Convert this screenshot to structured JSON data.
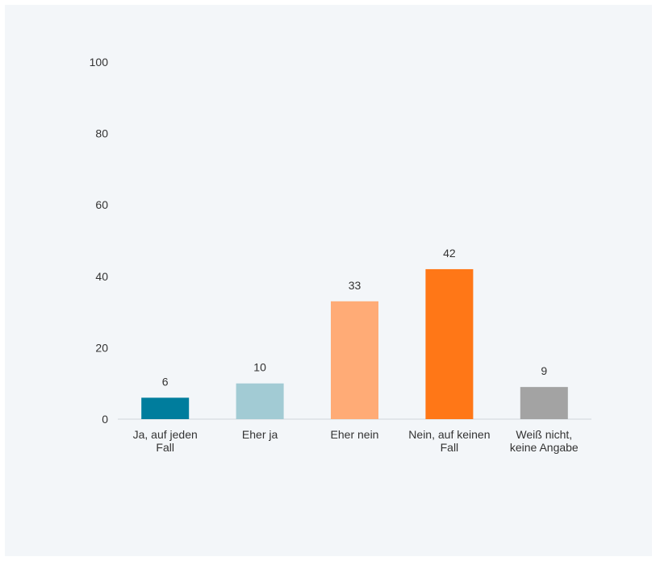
{
  "chart_data": {
    "type": "bar",
    "categories": [
      [
        "Ja, auf jeden",
        "Fall"
      ],
      [
        "Eher ja"
      ],
      [
        "Eher nein"
      ],
      [
        "Nein, auf keinen",
        "Fall"
      ],
      [
        "Weiß nicht,",
        "keine Angabe"
      ]
    ],
    "values": [
      6,
      10,
      33,
      42,
      9
    ],
    "value_labels": [
      "6",
      "10",
      "33",
      "42",
      "9"
    ],
    "colors": [
      "#007d9d",
      "#a2cbd4",
      "#ffab76",
      "#ff7717",
      "#a3a3a3"
    ],
    "y_ticks": [
      "0",
      "20",
      "40",
      "60",
      "80",
      "100"
    ],
    "ylim": [
      0,
      100
    ],
    "grid": false,
    "legend": "none"
  }
}
